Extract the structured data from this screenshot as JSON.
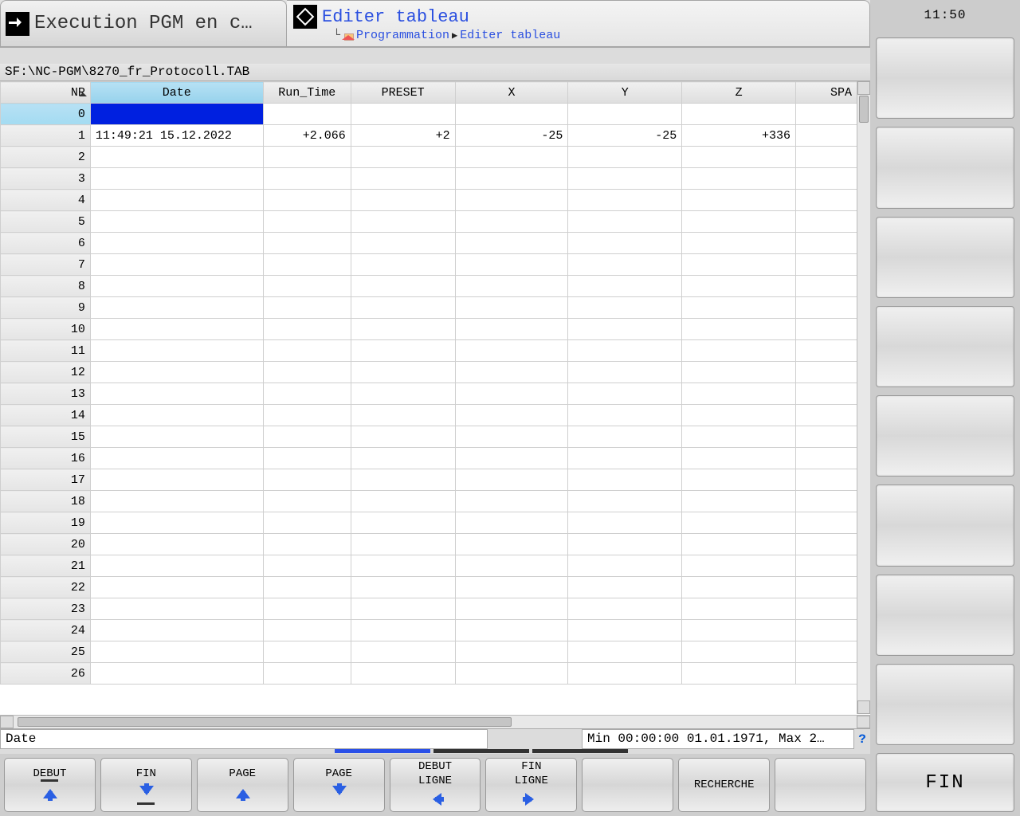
{
  "clock": "11:50",
  "tabs": {
    "execution": "Execution PGM en c…",
    "editer": "Editer tableau"
  },
  "breadcrumb": {
    "p1": "Programmation",
    "p2": "Editer tableau"
  },
  "path": "SF:\\NC-PGM\\8270_fr_Protocoll.TAB",
  "table": {
    "columns": {
      "nr": "NR",
      "date": "Date",
      "runtime": "Run_Time",
      "preset": "PRESET",
      "x": "X",
      "y": "Y",
      "z": "Z",
      "spa": "SPA"
    },
    "row0_nr": "0",
    "row1": {
      "nr": "1",
      "date": "11:49:21 15.12.2022",
      "runtime": "+2.066",
      "preset": "+2",
      "x": "-25",
      "y": "-25",
      "z": "+336"
    },
    "nrs": [
      "2",
      "3",
      "4",
      "5",
      "6",
      "7",
      "8",
      "9",
      "10",
      "11",
      "12",
      "13",
      "14",
      "15",
      "16",
      "17",
      "18",
      "19",
      "20",
      "21",
      "22",
      "23",
      "24",
      "25",
      "26"
    ]
  },
  "status": {
    "left": "Date",
    "right": "Min 00:00:00 01.01.1971, Max 2…"
  },
  "softkeys": {
    "k1": "DEBUT",
    "k2": "FIN",
    "k3": "PAGE",
    "k4": "PAGE",
    "k5a": "DEBUT",
    "k5b": "LIGNE",
    "k6a": "FIN",
    "k6b": "LIGNE",
    "k8": "RECHERCHE"
  },
  "fin_btn": "FIN"
}
